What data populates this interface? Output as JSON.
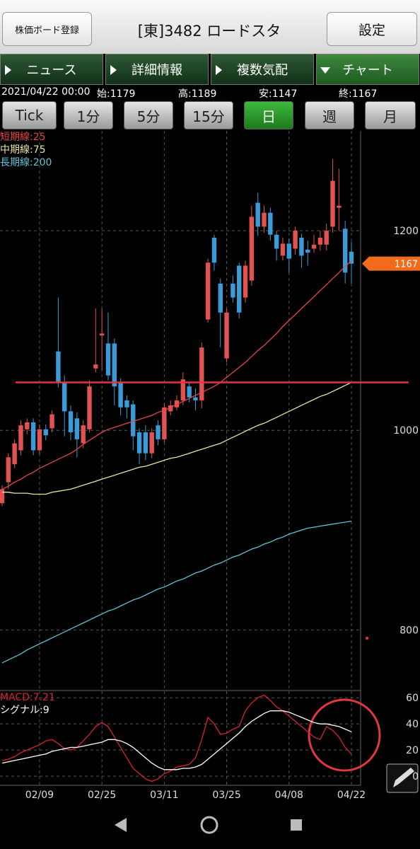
{
  "header": {
    "left_button": "株価ボード登録",
    "title": "[東]3482 ロードスタ",
    "right_button": "設定"
  },
  "tabs": [
    "ニュース",
    "詳細情報",
    "複数気配",
    "チャート"
  ],
  "quote": {
    "datetime": "2021/04/22 00:00",
    "open": "始:1179",
    "high": "高:1189",
    "low": "安:1147",
    "close": "終:1167"
  },
  "periods": [
    "Tick",
    "1分",
    "5分",
    "15分",
    "日",
    "週",
    "月"
  ],
  "chart_data": [
    {
      "type": "candlestick",
      "categories": [
        null,
        null,
        null,
        null,
        null,
        null,
        "02/09",
        null,
        null,
        null,
        null,
        null,
        null,
        null,
        null,
        null,
        "02/25",
        null,
        null,
        null,
        null,
        null,
        null,
        null,
        null,
        null,
        "03/11",
        null,
        null,
        null,
        null,
        null,
        null,
        null,
        null,
        null,
        "03/25",
        null,
        null,
        null,
        null,
        null,
        null,
        null,
        null,
        null,
        "04/08",
        null,
        null,
        null,
        null,
        null,
        null,
        null,
        null,
        null,
        "04/22"
      ],
      "open": [
        927,
        948,
        966,
        980,
        1001,
        1008,
        980,
        1001,
        1002,
        1079,
        1048,
        1019,
        1012,
        987,
        1001,
        1062,
        1095,
        1087,
        1087,
        1048,
        1030,
        1026,
        998,
        998,
        977,
        1005,
        991,
        1019,
        1023,
        1030,
        1044,
        1033,
        1030,
        1111,
        1193,
        1147,
        1072,
        1147,
        1165,
        1133,
        1150,
        1228,
        1204,
        1218,
        1196,
        1175,
        1187,
        1182,
        1193,
        1181,
        1182,
        1186,
        1186,
        1204,
        1223,
        1202,
        1179
      ],
      "high": [
        945,
        977,
        991,
        1010,
        1012,
        1012,
        1006,
        1006,
        1020,
        1133,
        1055,
        1025,
        1018,
        1010,
        1050,
        1122,
        1122,
        1118,
        1092,
        1052,
        1035,
        1030,
        1002,
        1005,
        1002,
        1010,
        1027,
        1030,
        1035,
        1058,
        1048,
        1042,
        1088,
        1172,
        1196,
        1152,
        1122,
        1155,
        1168,
        1170,
        1225,
        1238,
        1225,
        1223,
        1200,
        1193,
        1192,
        1204,
        1197,
        1190,
        1196,
        1200,
        1207,
        1272,
        1262,
        1210,
        1189
      ],
      "low": [
        924,
        941,
        962,
        975,
        996,
        975,
        976,
        990,
        998,
        1043,
        994,
        990,
        973,
        982,
        998,
        1058,
        1060,
        1050,
        1025,
        1015,
        1012,
        980,
        966,
        970,
        972,
        985,
        988,
        1015,
        1020,
        1025,
        1028,
        1020,
        1022,
        1108,
        1160,
        1083,
        1068,
        1128,
        1112,
        1128,
        1145,
        1195,
        1198,
        1190,
        1170,
        1170,
        1158,
        1176,
        1163,
        1165,
        1178,
        1180,
        1180,
        1198,
        1200,
        1147,
        1147
      ],
      "close": [
        941,
        973,
        987,
        1005,
        1008,
        980,
        1001,
        995,
        1016,
        1048,
        1019,
        998,
        991,
        1005,
        1044,
        1066,
        1097,
        1055,
        1044,
        1023,
        1023,
        994,
        977,
        977,
        998,
        991,
        1023,
        1025,
        1030,
        1051,
        1033,
        1030,
        1083,
        1168,
        1168,
        1118,
        1118,
        1133,
        1118,
        1165,
        1214,
        1204,
        1218,
        1196,
        1182,
        1187,
        1172,
        1200,
        1175,
        1178,
        1186,
        1193,
        1200,
        1250,
        1225,
        1158,
        1167
      ],
      "up_color": "#e25252",
      "down_color": "#3a9bd8",
      "series": [
        {
          "name": "短期線:25",
          "color": "#e84545",
          "values": [
            941,
            944,
            948,
            951,
            955,
            958,
            962,
            965,
            968,
            971,
            974,
            977,
            981,
            986,
            990,
            994,
            998,
            1001,
            1003,
            1005,
            1007,
            1009,
            1011,
            1013,
            1015,
            1018,
            1020,
            1023,
            1026,
            1029,
            1032,
            1035,
            1038,
            1041,
            1044,
            1048,
            1053,
            1058,
            1063,
            1068,
            1074,
            1080,
            1085,
            1091,
            1097,
            1104,
            1110,
            1116,
            1122,
            1128,
            1134,
            1140,
            1146,
            1152,
            1158,
            1164,
            1170
          ]
        },
        {
          "name": "中期線:75",
          "color": "#e8e6a0",
          "values": [
            938,
            938,
            937,
            937,
            937,
            936,
            936,
            936,
            938,
            939,
            940,
            941,
            943,
            945,
            947,
            949,
            951,
            953,
            955,
            957,
            959,
            961,
            963,
            964,
            966,
            968,
            970,
            972,
            973,
            975,
            977,
            979,
            981,
            983,
            985,
            987,
            990,
            993,
            996,
            999,
            1002,
            1005,
            1007,
            1010,
            1013,
            1016,
            1019,
            1022,
            1025,
            1028,
            1031,
            1034,
            1036,
            1039,
            1042,
            1045,
            1048
          ]
        },
        {
          "name": "長期線:200",
          "color": "#5fc3d6",
          "values": [
            767,
            770,
            773,
            776,
            780,
            783,
            786,
            789,
            792,
            795,
            798,
            801,
            804,
            807,
            810,
            813,
            816,
            819,
            821,
            824,
            827,
            830,
            832,
            835,
            838,
            841,
            843,
            846,
            849,
            851,
            854,
            857,
            859,
            862,
            865,
            867,
            870,
            873,
            875,
            878,
            881,
            883,
            886,
            888,
            891,
            893,
            896,
            898,
            900,
            902,
            903,
            904,
            905,
            906,
            907,
            908,
            909
          ]
        }
      ],
      "ylim": [
        740,
        1300
      ],
      "yticks": [
        800,
        1000,
        1200
      ],
      "grid": true,
      "hline": 1048,
      "hline_color": "#e8323a",
      "last_price": 1167,
      "last_price_color": "#f26b1d"
    },
    {
      "type": "line",
      "series": [
        {
          "name": "MACD:7.21",
          "color": "#d8242c",
          "values": [
            12,
            13,
            15,
            18,
            20,
            22,
            24,
            27,
            28,
            25,
            21,
            20,
            22,
            27,
            32,
            38,
            41,
            38,
            30,
            22,
            14,
            6,
            2,
            -2,
            -4,
            -2,
            2,
            4,
            7,
            8,
            9,
            14,
            28,
            45,
            40,
            32,
            33,
            36,
            38,
            50,
            56,
            60,
            62,
            58,
            53,
            50,
            46,
            42,
            38,
            34,
            30,
            28,
            38,
            35,
            30,
            22,
            17
          ]
        },
        {
          "name": "シグナル:9",
          "color": "#ffffff",
          "values": [
            10,
            11,
            12,
            13,
            14,
            15,
            16,
            17,
            19,
            20,
            21,
            22,
            22,
            23,
            24,
            25,
            26,
            28,
            28,
            27,
            25,
            22,
            18,
            14,
            10,
            7,
            5,
            5,
            5,
            6,
            6,
            7,
            9,
            13,
            17,
            21,
            25,
            29,
            33,
            38,
            42,
            45,
            48,
            50,
            50,
            50,
            49,
            47,
            45,
            43,
            41,
            40,
            40,
            39,
            38,
            36,
            34
          ]
        }
      ],
      "ylim": [
        -7,
        65
      ],
      "yticks": [
        0,
        20,
        40,
        60
      ],
      "grid": true
    }
  ]
}
